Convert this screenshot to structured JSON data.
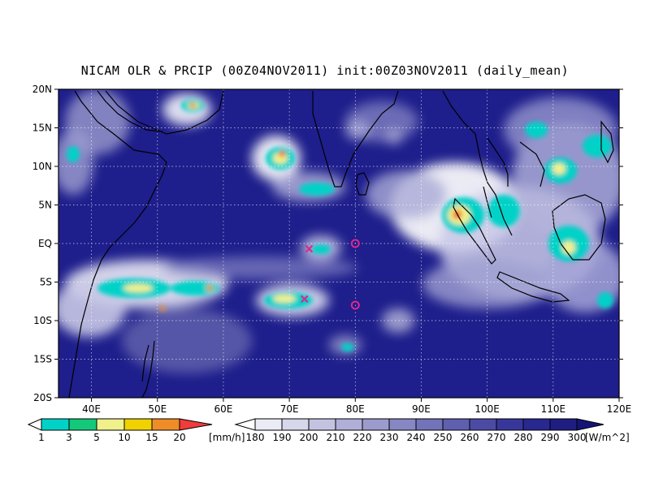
{
  "title": "NICAM OLR & PRCIP (00Z04NOV2011) init:00Z03NOV2011 (daily_mean)",
  "map": {
    "lat_labels": [
      "20N",
      "15N",
      "10N",
      "5N",
      "EQ",
      "5S",
      "10S",
      "15S",
      "20S"
    ],
    "lon_labels": [
      "40E",
      "50E",
      "60E",
      "70E",
      "80E",
      "90E",
      "100E",
      "110E",
      "120E"
    ],
    "lat_range": [
      -20,
      20
    ],
    "lon_range": [
      35,
      120
    ],
    "grid": "dotted",
    "background_color": "#1e1e8c",
    "markers": [
      {
        "type": "circle",
        "lat": 0,
        "lon": 80,
        "color": "#e0288c"
      },
      {
        "type": "circle",
        "lat": -8,
        "lon": 80,
        "color": "#e0288c"
      },
      {
        "type": "cross",
        "lat": -0.7,
        "lon": 73,
        "color": "#e0288c"
      },
      {
        "type": "cross",
        "lat": -7.2,
        "lon": 72.3,
        "color": "#e0288c"
      }
    ]
  },
  "precip_legend": {
    "labels": [
      "1",
      "3",
      "5",
      "10",
      "15",
      "20"
    ],
    "unit": "[mm/h]",
    "colors": [
      "#00d2c8",
      "#14c87a",
      "#f0f08c",
      "#f0d200",
      "#f08c28",
      "#f03c3c"
    ]
  },
  "olr_legend": {
    "labels": [
      "180",
      "190",
      "200",
      "210",
      "220",
      "230",
      "240",
      "250",
      "260",
      "270",
      "280",
      "290",
      "300"
    ],
    "unit": "[W/m^2]",
    "colors": [
      "#ebebf5",
      "#d7d7eb",
      "#c3c3e1",
      "#afafd7",
      "#9b9bcd",
      "#8787c3",
      "#7373b9",
      "#5f5faf",
      "#4b4ba5",
      "#37379b",
      "#282891",
      "#1e1e82",
      "#141478"
    ]
  }
}
